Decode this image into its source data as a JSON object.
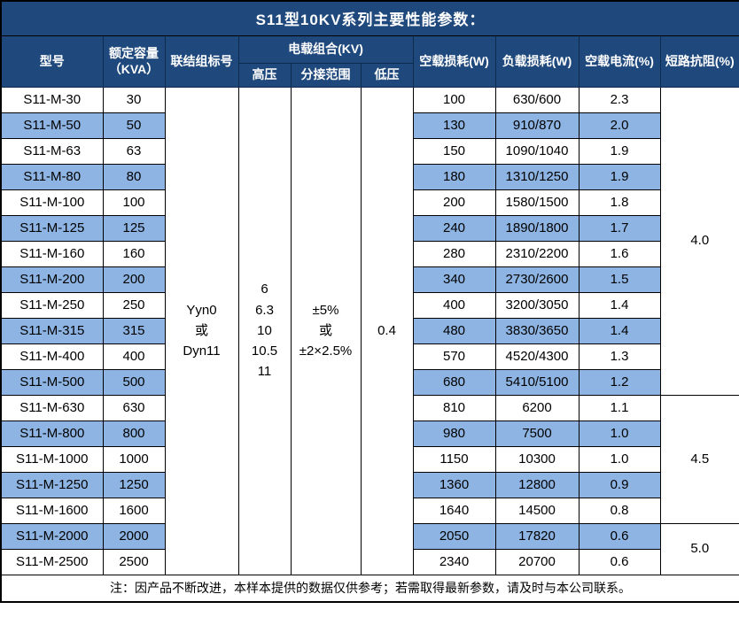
{
  "title": "S11型10KV系列主要性能参数：",
  "header": {
    "col_model": "型号",
    "col_capacity_line1": "额定容量",
    "col_capacity_line2": "（KVA）",
    "col_connection": "联结组标号",
    "col_voltage_group": "电载组合(KV)",
    "col_hv": "高压",
    "col_tap": "分接范围",
    "col_lv": "低压",
    "col_no_load_loss": "空载损耗(W)",
    "col_load_loss": "负载损耗(W)",
    "col_no_load_current": "空载电流(%)",
    "col_impedance": "短路抗阻(%)"
  },
  "merged": {
    "connection_lines": [
      "Yyn0",
      "或",
      "Dyn11"
    ],
    "hv_lines": [
      "6",
      "6.3",
      "10",
      "10.5",
      "11"
    ],
    "tap_lines": [
      "±5%",
      "或",
      "±2×2.5%"
    ],
    "lv": "0.4",
    "impedance_groups": [
      {
        "value": "4.0",
        "rows": 12
      },
      {
        "value": "4.5",
        "rows": 5
      },
      {
        "value": "5.0",
        "rows": 2
      }
    ]
  },
  "rows": [
    {
      "model": "S11-M-30",
      "capacity": "30",
      "no_load_loss": "100",
      "load_loss": "630/600",
      "no_load_current": "2.3"
    },
    {
      "model": "S11-M-50",
      "capacity": "50",
      "no_load_loss": "130",
      "load_loss": "910/870",
      "no_load_current": "2.0"
    },
    {
      "model": "S11-M-63",
      "capacity": "63",
      "no_load_loss": "150",
      "load_loss": "1090/1040",
      "no_load_current": "1.9"
    },
    {
      "model": "S11-M-80",
      "capacity": "80",
      "no_load_loss": "180",
      "load_loss": "1310/1250",
      "no_load_current": "1.9"
    },
    {
      "model": "S11-M-100",
      "capacity": "100",
      "no_load_loss": "200",
      "load_loss": "1580/1500",
      "no_load_current": "1.8"
    },
    {
      "model": "S11-M-125",
      "capacity": "125",
      "no_load_loss": "240",
      "load_loss": "1890/1800",
      "no_load_current": "1.7"
    },
    {
      "model": "S11-M-160",
      "capacity": "160",
      "no_load_loss": "280",
      "load_loss": "2310/2200",
      "no_load_current": "1.6"
    },
    {
      "model": "S11-M-200",
      "capacity": "200",
      "no_load_loss": "340",
      "load_loss": "2730/2600",
      "no_load_current": "1.5"
    },
    {
      "model": "S11-M-250",
      "capacity": "250",
      "no_load_loss": "400",
      "load_loss": "3200/3050",
      "no_load_current": "1.4"
    },
    {
      "model": "S11-M-315",
      "capacity": "315",
      "no_load_loss": "480",
      "load_loss": "3830/3650",
      "no_load_current": "1.4"
    },
    {
      "model": "S11-M-400",
      "capacity": "400",
      "no_load_loss": "570",
      "load_loss": "4520/4300",
      "no_load_current": "1.3"
    },
    {
      "model": "S11-M-500",
      "capacity": "500",
      "no_load_loss": "680",
      "load_loss": "5410/5100",
      "no_load_current": "1.2"
    },
    {
      "model": "S11-M-630",
      "capacity": "630",
      "no_load_loss": "810",
      "load_loss": "6200",
      "no_load_current": "1.1"
    },
    {
      "model": "S11-M-800",
      "capacity": "800",
      "no_load_loss": "980",
      "load_loss": "7500",
      "no_load_current": "1.0"
    },
    {
      "model": "S11-M-1000",
      "capacity": "1000",
      "no_load_loss": "1150",
      "load_loss": "10300",
      "no_load_current": "1.0"
    },
    {
      "model": "S11-M-1250",
      "capacity": "1250",
      "no_load_loss": "1360",
      "load_loss": "12800",
      "no_load_current": "0.9"
    },
    {
      "model": "S11-M-1600",
      "capacity": "1600",
      "no_load_loss": "1640",
      "load_loss": "14500",
      "no_load_current": "0.8"
    },
    {
      "model": "S11-M-2000",
      "capacity": "2000",
      "no_load_loss": "2050",
      "load_loss": "17820",
      "no_load_current": "0.6"
    },
    {
      "model": "S11-M-2500",
      "capacity": "2500",
      "no_load_loss": "2340",
      "load_loss": "20700",
      "no_load_current": "0.6"
    }
  ],
  "note": "注：因产品不断改进，本样本提供的数据仅供参考；若需取得最新参数，请及时与本公司联系。",
  "colors": {
    "title_bg": "#1F497D",
    "header_bg": "#1F497D",
    "row_alt_bg": "#8DB4E2",
    "border": "#000000"
  }
}
